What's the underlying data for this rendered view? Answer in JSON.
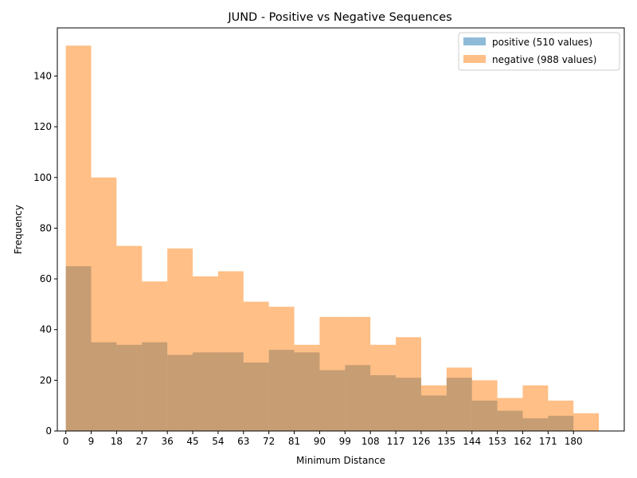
{
  "chart_data": {
    "type": "bar",
    "title": "JUND - Positive vs Negative Sequences",
    "xlabel": "Minimum Distance",
    "ylabel": "Frequency",
    "bin_width": 9,
    "bin_starts": [
      0,
      9,
      18,
      27,
      36,
      45,
      54,
      63,
      72,
      81,
      90,
      99,
      108,
      117,
      126,
      135,
      144,
      153,
      162,
      171,
      180
    ],
    "x_ticks": [
      0,
      9,
      18,
      27,
      36,
      45,
      54,
      63,
      72,
      81,
      90,
      99,
      108,
      117,
      126,
      135,
      144,
      153,
      162,
      171,
      180
    ],
    "y_ticks": [
      0,
      20,
      40,
      60,
      80,
      100,
      120,
      140
    ],
    "xlim": [
      -3,
      198
    ],
    "ylim": [
      0,
      159
    ],
    "legend_position": "upper right",
    "series": [
      {
        "name": "positive (510 values)",
        "color": "#1f77b4",
        "alpha": 0.5,
        "values": [
          65,
          35,
          34,
          35,
          30,
          31,
          31,
          27,
          32,
          31,
          24,
          26,
          22,
          21,
          14,
          21,
          12,
          8,
          5,
          6,
          0
        ]
      },
      {
        "name": "negative (988 values)",
        "color": "#ff7f0e",
        "alpha": 0.5,
        "values": [
          152,
          100,
          73,
          59,
          72,
          61,
          63,
          51,
          49,
          34,
          45,
          45,
          34,
          37,
          18,
          25,
          20,
          13,
          18,
          12,
          7
        ]
      }
    ]
  }
}
